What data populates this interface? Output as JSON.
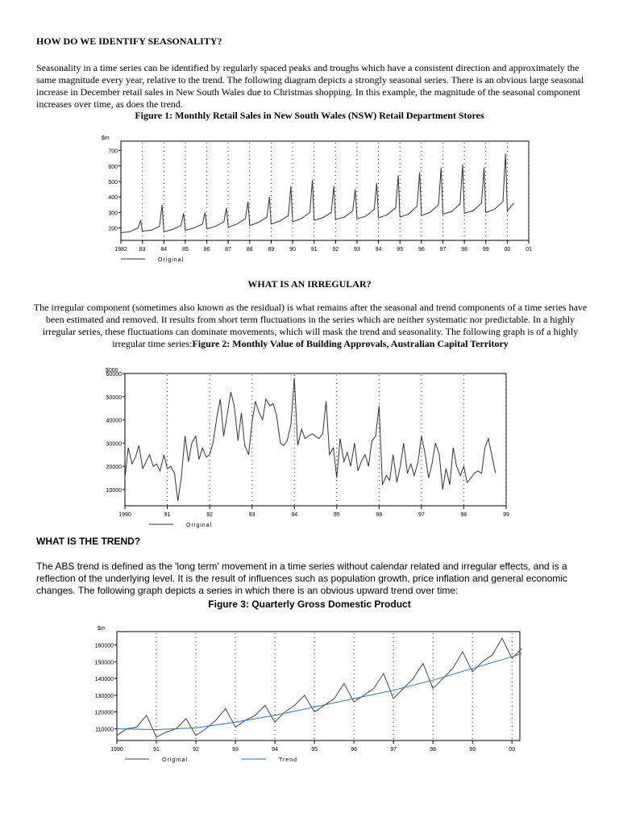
{
  "section1": {
    "heading": "HOW DO WE IDENTIFY SEASONALITY?",
    "paragraph": "Seasonality in a time series can be identified by regularly spaced peaks and troughs which have a consistent direction and approximately the same magnitude every year, relative to the trend. The following diagram depicts a strongly seasonal series. There is an obvious large seasonal increase in December retail sales in New South Wales due to Christmas shopping. In this example, the magnitude of the seasonal component increases over time, as does the trend.",
    "figure_title": "Figure 1: Monthly Retail Sales in New South Wales (NSW) Retail Department Stores"
  },
  "section2": {
    "heading": "WHAT IS AN IRREGULAR?",
    "paragraph": "The irregular component (sometimes also known as the residual) is what remains after the seasonal and trend components of a time series have been estimated and removed. It results from short term fluctuations in the series which are neither systematic nor predictable. In a highly irregular series, these fluctuations can dominate movements, which will mask the trend and seasonality. The following graph is of a highly irregular time series:",
    "figure_title": "Figure 2: Monthly Value of Building Approvals, Australian Capital Territory"
  },
  "section3": {
    "heading": "WHAT IS THE TREND?",
    "paragraph": "The ABS trend is defined as the 'long term' movement in a time series without calendar related and irregular effects, and is a reflection of the underlying level. It is the result of influences such as population growth, price inflation and general economic changes. The following graph depicts a series in which there is an obvious upward trend over time:",
    "figure_title": "Figure 3: Quarterly Gross Domestic Product"
  },
  "chart_data": [
    {
      "type": "line",
      "ylabel": "$m",
      "ylim": [
        120,
        760
      ],
      "y_ticks": [
        "700",
        "600",
        "500",
        "400",
        "300",
        "200"
      ],
      "x_ticks": [
        "1982",
        "83",
        "84",
        "85",
        "86",
        "87",
        "88",
        "89",
        "90",
        "91",
        "92",
        "93",
        "94",
        "95",
        "96",
        "97",
        "98",
        "99",
        "00",
        "01"
      ],
      "xlim": [
        1982,
        2001
      ],
      "grid": "vertical dotted",
      "series": [
        {
          "name": "Original",
          "color": "#333333",
          "x": [
            1982.0,
            1982.4,
            1982.8,
            1982.92,
            1983.0,
            1983.4,
            1983.8,
            1983.92,
            1984.0,
            1984.4,
            1984.8,
            1984.92,
            1985.0,
            1985.4,
            1985.8,
            1985.92,
            1986.0,
            1986.4,
            1986.8,
            1986.92,
            1987.0,
            1987.4,
            1987.8,
            1987.92,
            1988.0,
            1988.4,
            1988.8,
            1988.92,
            1989.0,
            1989.4,
            1989.8,
            1989.92,
            1990.0,
            1990.4,
            1990.8,
            1990.92,
            1991.0,
            1991.4,
            1991.8,
            1991.92,
            1992.0,
            1992.4,
            1992.8,
            1992.92,
            1993.0,
            1993.4,
            1993.8,
            1993.92,
            1994.0,
            1994.4,
            1994.8,
            1994.92,
            1995.0,
            1995.4,
            1995.8,
            1995.92,
            1996.0,
            1996.4,
            1996.8,
            1996.92,
            1997.0,
            1997.4,
            1997.8,
            1997.92,
            1998.0,
            1998.4,
            1998.8,
            1998.92,
            1999.0,
            1999.4,
            1999.8,
            1999.92,
            2000.0,
            2000.3
          ],
          "values": [
            170,
            175,
            200,
            250,
            180,
            185,
            210,
            350,
            175,
            190,
            215,
            295,
            185,
            200,
            225,
            300,
            195,
            210,
            240,
            330,
            205,
            225,
            260,
            370,
            215,
            235,
            270,
            400,
            225,
            245,
            280,
            470,
            240,
            260,
            300,
            510,
            250,
            265,
            300,
            470,
            255,
            270,
            310,
            450,
            260,
            275,
            320,
            490,
            265,
            285,
            330,
            540,
            270,
            290,
            340,
            560,
            280,
            300,
            350,
            590,
            290,
            305,
            355,
            610,
            295,
            310,
            360,
            590,
            300,
            320,
            370,
            680,
            310,
            360
          ]
        }
      ]
    },
    {
      "type": "line",
      "ylabel": "$000",
      "ylim": [
        3000,
        60000
      ],
      "y_ticks": [
        "60000",
        "50000",
        "40000",
        "30000",
        "20000",
        "10000"
      ],
      "x_ticks": [
        "1990",
        "91",
        "92",
        "93",
        "94",
        "95",
        "96",
        "97",
        "98",
        "99"
      ],
      "xlim": [
        1990,
        1999
      ],
      "grid": "vertical dotted",
      "series": [
        {
          "name": "Original",
          "color": "#333333",
          "x": [
            1990.0,
            1990.08,
            1990.17,
            1990.25,
            1990.33,
            1990.42,
            1990.5,
            1990.58,
            1990.67,
            1990.75,
            1990.83,
            1990.92,
            1991.0,
            1991.08,
            1991.17,
            1991.25,
            1991.33,
            1991.42,
            1991.5,
            1991.58,
            1991.67,
            1991.75,
            1991.83,
            1991.92,
            1992.0,
            1992.08,
            1992.17,
            1992.25,
            1992.33,
            1992.42,
            1992.5,
            1992.58,
            1992.67,
            1992.75,
            1992.83,
            1992.92,
            1993.0,
            1993.08,
            1993.17,
            1993.25,
            1993.33,
            1993.42,
            1993.5,
            1993.58,
            1993.67,
            1993.75,
            1993.83,
            1993.92,
            1994.0,
            1994.08,
            1994.17,
            1994.25,
            1994.33,
            1994.42,
            1994.5,
            1994.58,
            1994.67,
            1994.75,
            1994.83,
            1994.92,
            1995.0,
            1995.08,
            1995.17,
            1995.25,
            1995.33,
            1995.42,
            1995.5,
            1995.58,
            1995.67,
            1995.75,
            1995.83,
            1995.92,
            1996.0,
            1996.08,
            1996.17,
            1996.25,
            1996.33,
            1996.42,
            1996.5,
            1996.58,
            1996.67,
            1996.75,
            1996.83,
            1996.92,
            1997.0,
            1997.08,
            1997.17,
            1997.25,
            1997.33,
            1997.42,
            1997.5,
            1997.58,
            1997.67,
            1997.75,
            1997.83,
            1997.92,
            1998.0,
            1998.08,
            1998.17,
            1998.25,
            1998.33,
            1998.42,
            1998.5,
            1998.58,
            1998.67,
            1998.75
          ],
          "values": [
            15000,
            28000,
            21000,
            24000,
            29000,
            19000,
            22000,
            25000,
            20000,
            21000,
            18000,
            25000,
            19000,
            20000,
            17000,
            5000,
            15000,
            33000,
            22000,
            30000,
            33000,
            23000,
            28000,
            24000,
            25000,
            30000,
            41000,
            49000,
            33000,
            43000,
            52000,
            46000,
            31000,
            43000,
            29000,
            25000,
            39000,
            48000,
            43000,
            40000,
            49000,
            46000,
            47000,
            42000,
            30000,
            29000,
            31000,
            38000,
            58000,
            29000,
            36000,
            32000,
            33000,
            34000,
            33000,
            32000,
            34000,
            48000,
            25000,
            28000,
            15000,
            32000,
            22000,
            26000,
            20000,
            30000,
            18000,
            22000,
            25000,
            20000,
            31000,
            33000,
            46000,
            12000,
            16000,
            14000,
            25000,
            13000,
            20000,
            30000,
            17000,
            21000,
            16000,
            22000,
            33000,
            26000,
            15000,
            21000,
            30000,
            25000,
            10000,
            19000,
            12000,
            28000,
            20000,
            16000,
            20000,
            13000,
            15000,
            17000,
            18000,
            17000,
            28000,
            32000,
            24000,
            17000
          ]
        }
      ]
    },
    {
      "type": "line",
      "ylabel": "$m",
      "ylim": [
        103000,
        168000
      ],
      "y_ticks": [
        "160000",
        "150000",
        "140000",
        "130000",
        "120000",
        "110000"
      ],
      "x_ticks": [
        "1990",
        "91",
        "92",
        "93",
        "94",
        "95",
        "96",
        "97",
        "98",
        "99",
        "00"
      ],
      "xlim": [
        1990,
        2000.2
      ],
      "grid": "vertical dotted",
      "series": [
        {
          "name": "Original",
          "color": "#444444",
          "x": [
            1990.0,
            1990.25,
            1990.5,
            1990.75,
            1991.0,
            1991.25,
            1991.5,
            1991.75,
            1992.0,
            1992.25,
            1992.5,
            1992.75,
            1993.0,
            1993.25,
            1993.5,
            1993.75,
            1994.0,
            1994.25,
            1994.5,
            1994.75,
            1995.0,
            1995.25,
            1995.5,
            1995.75,
            1996.0,
            1996.25,
            1996.5,
            1996.75,
            1997.0,
            1997.25,
            1997.5,
            1997.75,
            1998.0,
            1998.25,
            1998.5,
            1998.75,
            1999.0,
            1999.25,
            1999.5,
            1999.75,
            2000.0,
            2000.25
          ],
          "values": [
            106000,
            110000,
            111000,
            118000,
            105000,
            108000,
            110000,
            116000,
            106000,
            110000,
            115000,
            122000,
            111000,
            115000,
            118000,
            124000,
            114000,
            120000,
            124000,
            130000,
            120000,
            124000,
            128000,
            137000,
            126000,
            130000,
            134000,
            143000,
            128000,
            134000,
            140000,
            149000,
            134000,
            140000,
            146000,
            156000,
            144000,
            150000,
            154000,
            164000,
            152000,
            158000
          ]
        },
        {
          "name": "Trend",
          "color": "#3a6ea5",
          "x": [
            1990.0,
            1991.0,
            1992.0,
            1993.0,
            1994.0,
            1995.0,
            1996.0,
            1997.0,
            1998.0,
            1999.0,
            2000.0,
            2000.25
          ],
          "values": [
            110000,
            109500,
            110500,
            114000,
            118000,
            123000,
            128000,
            133000,
            139000,
            146000,
            153000,
            155000
          ]
        }
      ]
    }
  ]
}
